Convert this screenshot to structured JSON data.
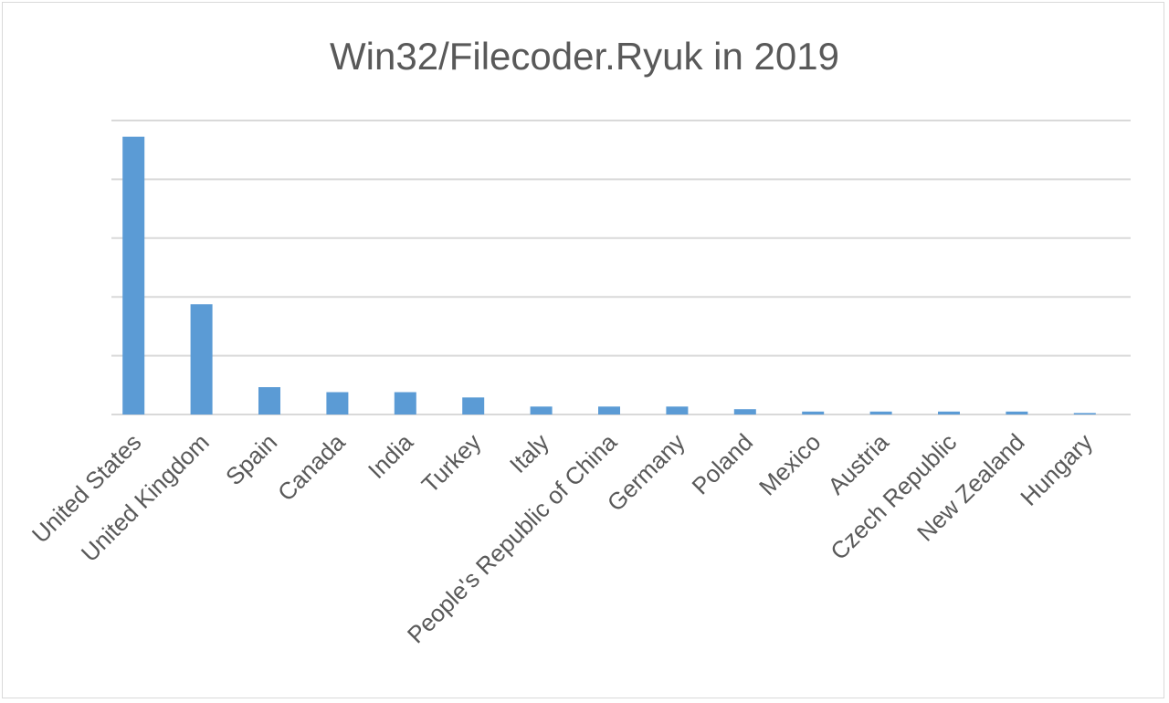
{
  "chart_data": {
    "type": "bar",
    "title": "Win32/Filecoder.Ryuk in 2019",
    "xlabel": "",
    "ylabel": "",
    "ylim": [
      0,
      1
    ],
    "grid": true,
    "legend": "none",
    "categories": [
      "United States",
      "United Kingdom",
      "Spain",
      "Canada",
      "India",
      "Turkey",
      "Italy",
      "People's Republic of China",
      "Germany",
      "Poland",
      "Mexico",
      "Austria",
      "Czech Republic",
      "New Zealand",
      "Hungary"
    ],
    "values": [
      0.945,
      0.375,
      0.093,
      0.076,
      0.076,
      0.058,
      0.027,
      0.027,
      0.027,
      0.018,
      0.01,
      0.01,
      0.01,
      0.01,
      0.005
    ],
    "colors": {
      "bar": "#5b9bd5",
      "grid": "#d9d9d9",
      "label": "#595959"
    }
  }
}
